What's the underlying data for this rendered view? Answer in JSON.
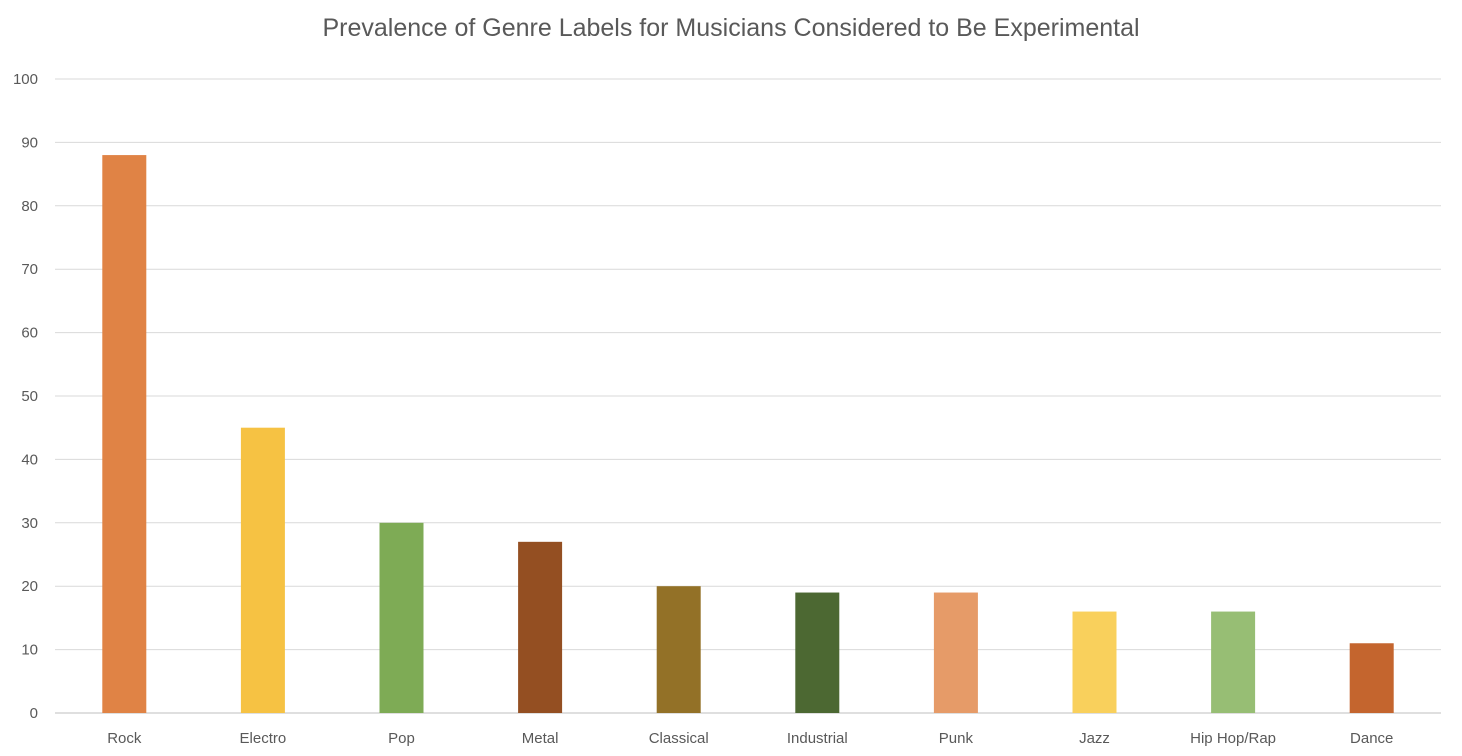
{
  "chart_data": {
    "type": "bar",
    "title": "Prevalence of Genre Labels for Musicians Considered to Be Experimental",
    "xlabel": "",
    "ylabel": "",
    "categories": [
      "Rock",
      "Electro",
      "Pop",
      "Metal",
      "Classical",
      "Industrial",
      "Punk",
      "Jazz",
      "Hip Hop/Rap",
      "Dance"
    ],
    "values": [
      88,
      45,
      30,
      27,
      20,
      19,
      19,
      16,
      16,
      11
    ],
    "colors": [
      "#E08345",
      "#F6C243",
      "#7EAB55",
      "#944F22",
      "#937127",
      "#4C6832",
      "#E69B68",
      "#F9D05C",
      "#97BE74",
      "#C4652E"
    ],
    "ylim": [
      0,
      100
    ],
    "yticks": [
      0,
      10,
      20,
      30,
      40,
      50,
      60,
      70,
      80,
      90,
      100
    ],
    "grid": true,
    "legend": "none"
  }
}
